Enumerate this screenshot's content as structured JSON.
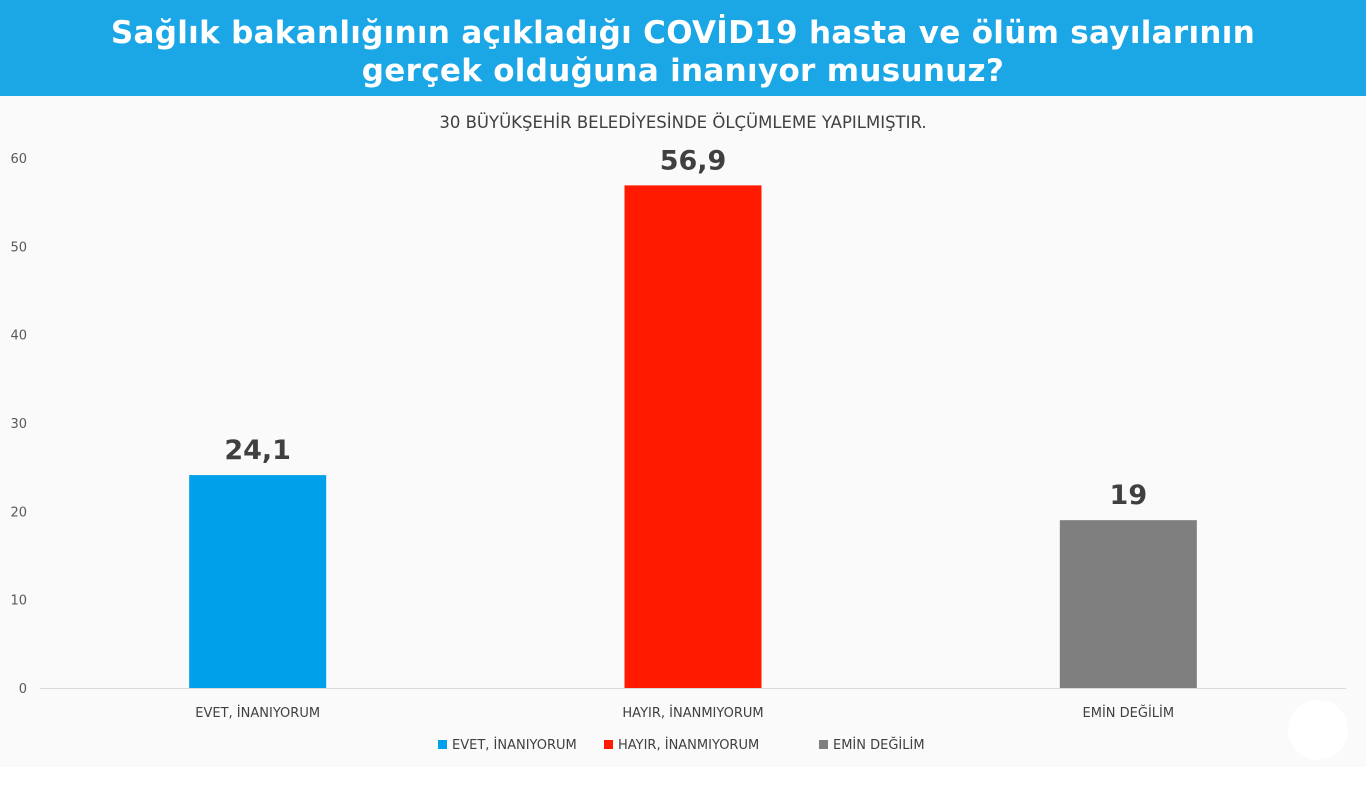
{
  "header": {
    "title_line1": "Sağlık bakanlığının açıkladığı COVİD19 hasta ve ölüm sayılarının",
    "title_line2": "gerçek olduğuna inanıyor musunuz?"
  },
  "chart_data": {
    "type": "bar",
    "title": "",
    "subtitle": "30 BÜYÜKŞEHİR BELEDİYESİNDE ÖLÇÜMLEME YAPILMIŞTIR.",
    "xlabel": "",
    "ylabel": "",
    "categories": [
      "EVET, İNANIYORUM",
      "HAYIR, İNANMIYORUM",
      "EMİN DEĞİLİM"
    ],
    "values": [
      24.1,
      56.9,
      19
    ],
    "value_labels": [
      "24,1",
      "56,9",
      "19"
    ],
    "colors": [
      "#00a0ea",
      "#ff1a00",
      "#7f7f7f"
    ],
    "ylim": [
      0,
      60
    ],
    "yticks": [
      0,
      10,
      20,
      30,
      40,
      50,
      60
    ],
    "grid": false,
    "legend": {
      "position": "bottom",
      "entries": [
        {
          "label": "EVET, İNANIYORUM",
          "color": "#00a0ea"
        },
        {
          "label": "HAYIR, İNANMIYORUM",
          "color": "#ff1a00"
        },
        {
          "label": "EMİN DEĞİLİM",
          "color": "#7f7f7f"
        }
      ]
    }
  }
}
